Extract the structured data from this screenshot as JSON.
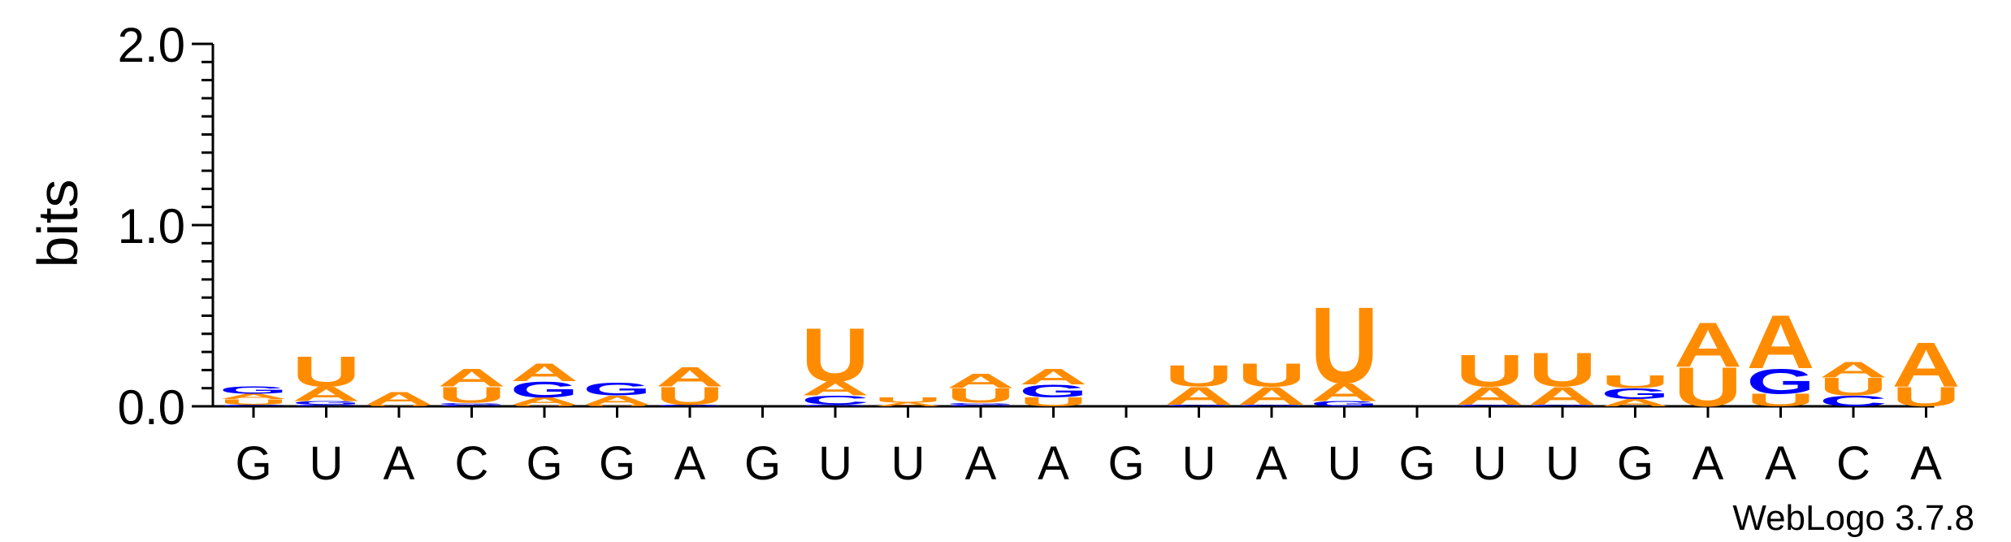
{
  "chart_data": {
    "type": "sequence-logo",
    "ylabel": "bits",
    "ylim": [
      0,
      2.0
    ],
    "yticks": [
      {
        "value": 0.0,
        "label": "0.0"
      },
      {
        "value": 1.0,
        "label": "1.0"
      },
      {
        "value": 2.0,
        "label": "2.0"
      }
    ],
    "categories": [
      "G",
      "U",
      "A",
      "C",
      "G",
      "G",
      "A",
      "G",
      "U",
      "U",
      "A",
      "A",
      "G",
      "U",
      "A",
      "U",
      "G",
      "U",
      "U",
      "G",
      "A",
      "A",
      "C",
      "A"
    ],
    "colors": {
      "A": "#ff8c00",
      "U": "#ff8c00",
      "G": "#0000ff",
      "C": "#0000ff"
    },
    "stacks": [
      [
        {
          "letter": "C",
          "height": 0.01
        },
        {
          "letter": "U",
          "height": 0.03
        },
        {
          "letter": "A",
          "height": 0.03
        },
        {
          "letter": "G",
          "height": 0.04
        }
      ],
      [
        {
          "letter": "C",
          "height": 0.01
        },
        {
          "letter": "G",
          "height": 0.02
        },
        {
          "letter": "A",
          "height": 0.08
        },
        {
          "letter": "U",
          "height": 0.17
        }
      ],
      [
        {
          "letter": "U",
          "height": 0.01
        },
        {
          "letter": "A",
          "height": 0.07
        }
      ],
      [
        {
          "letter": "C",
          "height": 0.01
        },
        {
          "letter": "G",
          "height": 0.01
        },
        {
          "letter": "U",
          "height": 0.09
        },
        {
          "letter": "A",
          "height": 0.1
        }
      ],
      [
        {
          "letter": "U",
          "height": 0.01
        },
        {
          "letter": "A",
          "height": 0.04
        },
        {
          "letter": "G",
          "height": 0.09
        },
        {
          "letter": "A",
          "height": 0.1
        }
      ],
      [
        {
          "letter": "U",
          "height": 0.01
        },
        {
          "letter": "A",
          "height": 0.05
        },
        {
          "letter": "G",
          "height": 0.07
        }
      ],
      [
        {
          "letter": "G",
          "height": 0.01
        },
        {
          "letter": "U",
          "height": 0.1
        },
        {
          "letter": "A",
          "height": 0.11
        }
      ],
      [],
      [
        {
          "letter": "G",
          "height": 0.01
        },
        {
          "letter": "C",
          "height": 0.05
        },
        {
          "letter": "A",
          "height": 0.08
        },
        {
          "letter": "U",
          "height": 0.3
        }
      ],
      [
        {
          "letter": "A",
          "height": 0.02
        },
        {
          "letter": "U",
          "height": 0.03
        }
      ],
      [
        {
          "letter": "C",
          "height": 0.01
        },
        {
          "letter": "G",
          "height": 0.01
        },
        {
          "letter": "U",
          "height": 0.08
        },
        {
          "letter": "A",
          "height": 0.08
        }
      ],
      [
        {
          "letter": "U",
          "height": 0.05
        },
        {
          "letter": "G",
          "height": 0.07
        },
        {
          "letter": "A",
          "height": 0.09
        }
      ],
      [],
      [
        {
          "letter": "G",
          "height": 0.01
        },
        {
          "letter": "A",
          "height": 0.1
        },
        {
          "letter": "U",
          "height": 0.12
        }
      ],
      [
        {
          "letter": "G",
          "height": 0.01
        },
        {
          "letter": "A",
          "height": 0.1
        },
        {
          "letter": "U",
          "height": 0.13
        }
      ],
      [
        {
          "letter": "G",
          "height": 0.03
        },
        {
          "letter": "A",
          "height": 0.1
        },
        {
          "letter": "U",
          "height": 0.43
        }
      ],
      [],
      [
        {
          "letter": "G",
          "height": 0.01
        },
        {
          "letter": "A",
          "height": 0.1
        },
        {
          "letter": "U",
          "height": 0.18
        }
      ],
      [
        {
          "letter": "G",
          "height": 0.01
        },
        {
          "letter": "A",
          "height": 0.1
        },
        {
          "letter": "U",
          "height": 0.19
        }
      ],
      [
        {
          "letter": "A",
          "height": 0.04
        },
        {
          "letter": "G",
          "height": 0.06
        },
        {
          "letter": "U",
          "height": 0.07
        }
      ],
      [
        {
          "letter": "U",
          "height": 0.22
        },
        {
          "letter": "A",
          "height": 0.25
        }
      ],
      [
        {
          "letter": "U",
          "height": 0.07
        },
        {
          "letter": "G",
          "height": 0.14
        },
        {
          "letter": "A",
          "height": 0.3
        }
      ],
      [
        {
          "letter": "C",
          "height": 0.06
        },
        {
          "letter": "U",
          "height": 0.1
        },
        {
          "letter": "A",
          "height": 0.09
        }
      ],
      [
        {
          "letter": "U",
          "height": 0.11
        },
        {
          "letter": "A",
          "height": 0.25
        }
      ]
    ]
  },
  "footer": {
    "credit": "WebLogo 3.7.8"
  }
}
